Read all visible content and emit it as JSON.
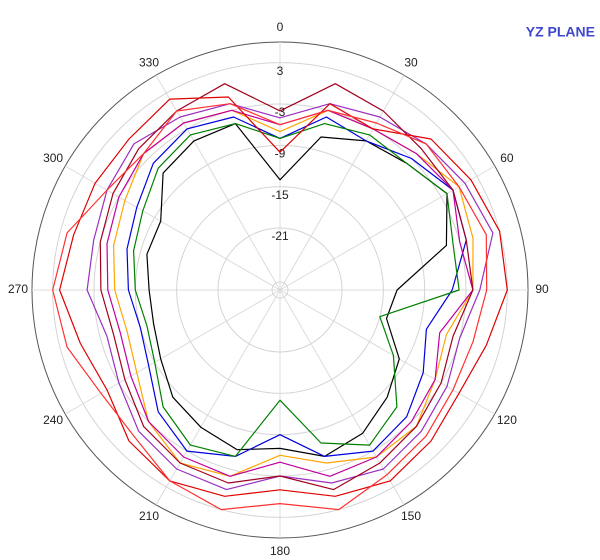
{
  "chart_data": {
    "type": "polar",
    "title": "YZ PLANE",
    "direction": "clockwise",
    "zero_location": "top",
    "rlim": [
      -30,
      6
    ],
    "rticks": [
      3,
      -3,
      -9,
      -15,
      -21
    ],
    "thetaticks": [
      0,
      30,
      60,
      90,
      120,
      150,
      180,
      210,
      240,
      270,
      300,
      330
    ],
    "theta": [
      0,
      15,
      30,
      45,
      60,
      75,
      90,
      105,
      120,
      135,
      150,
      165,
      180,
      195,
      210,
      225,
      240,
      255,
      270,
      285,
      300,
      315,
      330,
      345
    ],
    "series": [
      {
        "color": "#000000",
        "values": [
          -14,
          -7,
          -5,
          -4,
          -2,
          -5,
          -13,
          -14,
          -10,
          -8,
          -6,
          -5,
          -7,
          -6,
          -7,
          -8,
          -10,
          -11,
          -11,
          -10,
          -10,
          -6,
          -5,
          -5
        ]
      },
      {
        "color": "#0000e0",
        "values": [
          -8,
          -4,
          -5,
          -3,
          -1,
          -2,
          -5,
          -8,
          -6,
          -4,
          -3,
          -5,
          -9,
          -5,
          -3,
          -5,
          -8,
          -9,
          -8,
          -7,
          -6,
          -4,
          -3,
          -4
        ]
      },
      {
        "color": "#008000",
        "values": [
          -8,
          -5,
          -4,
          -4,
          -2,
          -4,
          -4,
          -15,
          -11,
          -6,
          -4,
          -7,
          -14,
          -5,
          -4,
          -6,
          -9,
          -10,
          -9,
          -8,
          -7,
          -5,
          -4,
          -5
        ]
      },
      {
        "color": "#ffa500",
        "values": [
          -7,
          -3,
          -3,
          -2,
          0,
          -1,
          -2,
          -5,
          -4,
          -2,
          -2,
          -4,
          -6,
          -2,
          -1,
          -3,
          -6,
          -7,
          -6,
          -5,
          -4,
          -2,
          -2,
          -3
        ]
      },
      {
        "color": "#c000a0",
        "values": [
          -6,
          -3,
          -3,
          -2,
          -1,
          -3,
          -2,
          -6,
          -4,
          -3,
          -2,
          -2,
          -5,
          -2,
          -2,
          -3,
          -5,
          -6,
          -5,
          -4,
          -3,
          -2,
          -2,
          -3
        ]
      },
      {
        "color": "#9a30c0",
        "values": [
          -5,
          -2,
          -1,
          0,
          1,
          2,
          -1,
          -3,
          -2,
          -1,
          0,
          -1,
          -3,
          0,
          0,
          -1,
          -3,
          -4,
          -2,
          -2,
          -1,
          0,
          -1,
          -2
        ]
      },
      {
        "color": "#a00020",
        "values": [
          -4,
          1,
          0,
          -1,
          -1,
          -2,
          -2,
          -4,
          -3,
          -2,
          -1,
          0,
          -3,
          -1,
          -1,
          -2,
          -4,
          -5,
          -4,
          -3,
          -2,
          -1,
          0,
          1
        ]
      },
      {
        "color": "#e00000",
        "values": [
          -10,
          -2,
          -3,
          1,
          2,
          3,
          3,
          1,
          0,
          1,
          2,
          1,
          -1,
          1,
          2,
          1,
          -1,
          0,
          2,
          1,
          1,
          1,
          2,
          -1
        ]
      },
      {
        "color": "#ff3030",
        "values": [
          -6,
          -3,
          -2,
          0,
          0,
          1,
          0,
          -1,
          -1,
          0,
          1,
          3,
          1,
          3,
          2,
          0,
          0,
          2,
          3,
          2,
          -1,
          -2,
          0,
          -2
        ]
      }
    ]
  }
}
